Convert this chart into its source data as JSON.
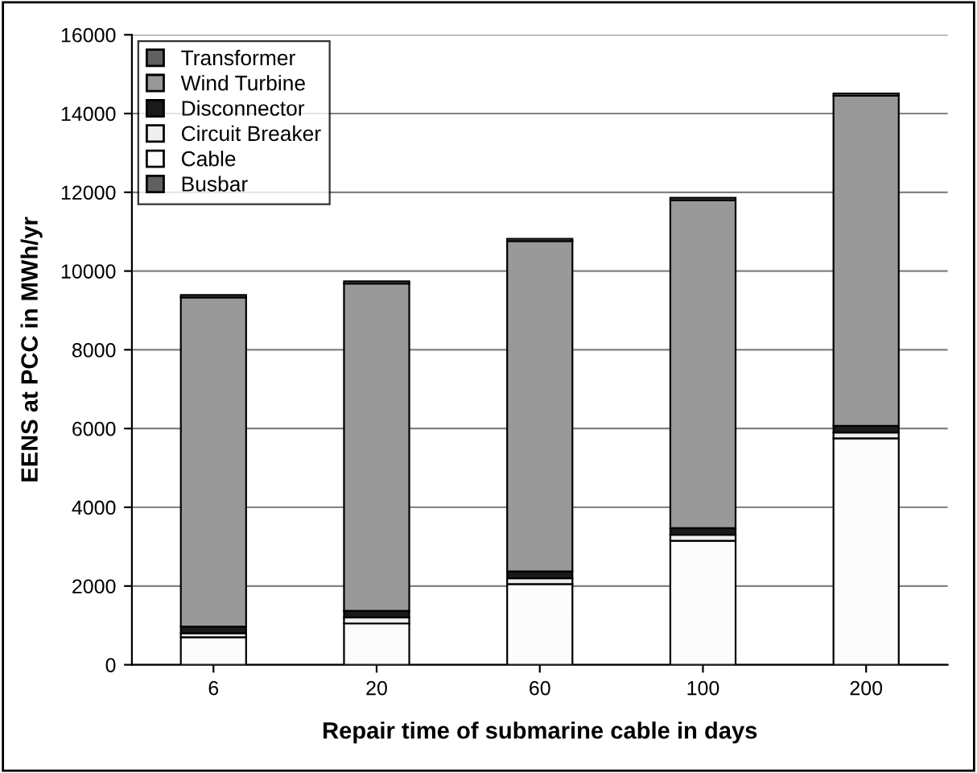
{
  "chart_data": {
    "type": "bar",
    "stacked": true,
    "xlabel": "Repair time of submarine cable in days",
    "ylabel": "EENS at PCC in MWh/yr",
    "categories": [
      "6",
      "20",
      "60",
      "100",
      "200"
    ],
    "series": [
      {
        "name": "Busbar",
        "color": "#606060",
        "values": [
          null,
          null,
          null,
          null,
          null
        ]
      },
      {
        "name": "Cable",
        "color": "#fcfcfc",
        "values": [
          700,
          1050,
          2050,
          3150,
          5750
        ]
      },
      {
        "name": "Circuit Breaker",
        "color": "#eeeeee",
        "values": [
          100,
          150,
          150,
          150,
          150
        ]
      },
      {
        "name": "Disconnector",
        "color": "#1a1a1a",
        "values": [
          170,
          170,
          170,
          170,
          170
        ]
      },
      {
        "name": "Wind Turbine",
        "color": "#999999",
        "values": [
          8360,
          8310,
          8390,
          8330,
          8380
        ]
      },
      {
        "name": "Transformer",
        "color": "#606060",
        "values": [
          60,
          60,
          60,
          60,
          60
        ]
      }
    ],
    "ylim": [
      0,
      16000
    ],
    "yticks": [
      0,
      2000,
      4000,
      6000,
      8000,
      10000,
      12000,
      14000,
      16000
    ],
    "grid": "y",
    "legend": "top left"
  }
}
